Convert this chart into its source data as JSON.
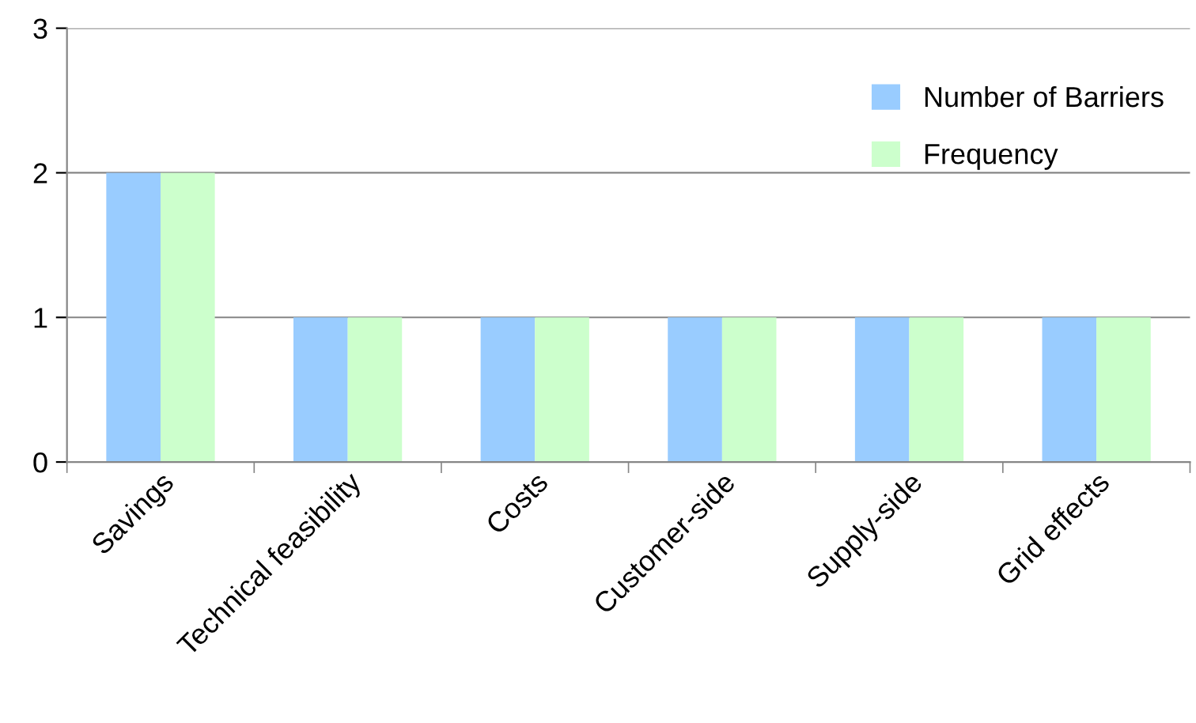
{
  "chart_data": {
    "type": "bar",
    "categories": [
      "Savings",
      "Technical feasibility",
      "Costs",
      "Customer-side",
      "Supply-side",
      "Grid effects"
    ],
    "series": [
      {
        "name": "Number of Barriers",
        "color": "#99ccff",
        "values": [
          2,
          1,
          1,
          1,
          1,
          1
        ]
      },
      {
        "name": "Frequency",
        "color": "#ccffcc",
        "values": [
          2,
          1,
          1,
          1,
          1,
          1
        ]
      }
    ],
    "ylim": [
      0,
      3
    ],
    "yticks": [
      0,
      1,
      2,
      3
    ],
    "grid": "y",
    "legend": "top right"
  }
}
